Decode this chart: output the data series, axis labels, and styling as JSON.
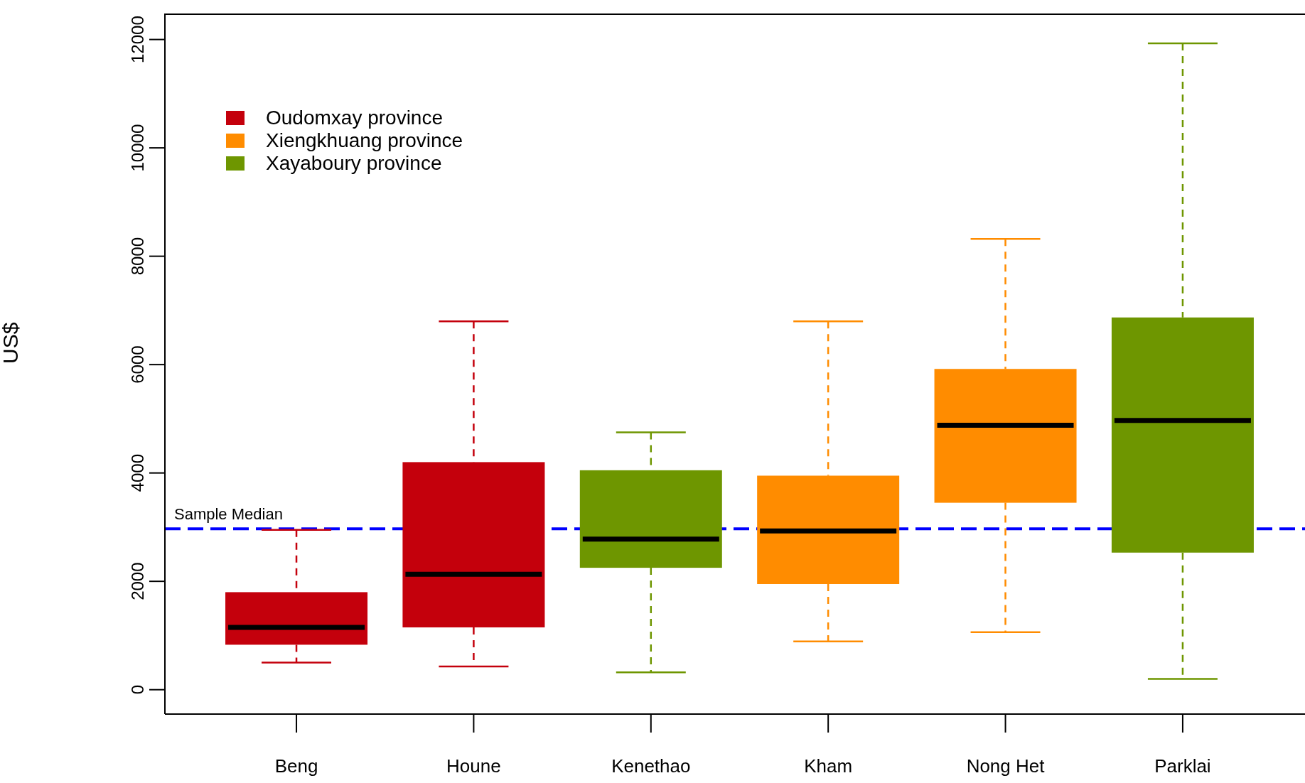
{
  "chart_data": {
    "type": "box",
    "ylabel": "US$",
    "categories": [
      "Beng",
      "Houne",
      "Kenethao",
      "Kham",
      "Nong Het",
      "Parklai"
    ],
    "series": [
      {
        "name": "Oudomxay province",
        "color": "#c4000c",
        "boxes": [
          {
            "low": 500,
            "q1": 830,
            "median": 1150,
            "q3": 1800,
            "high": 2950
          },
          {
            "low": 430,
            "q1": 1150,
            "median": 2130,
            "q3": 4200,
            "high": 6800
          },
          null,
          null,
          null,
          null
        ]
      },
      {
        "name": "Xiengkhuang province",
        "color": "#ff8c00",
        "boxes": [
          null,
          null,
          null,
          {
            "low": 890,
            "q1": 1950,
            "median": 2930,
            "q3": 3950,
            "high": 6800
          },
          {
            "low": 1060,
            "q1": 3450,
            "median": 4880,
            "q3": 5920,
            "high": 8320
          },
          null
        ]
      },
      {
        "name": "Xayaboury province",
        "color": "#6e9600",
        "boxes": [
          null,
          null,
          {
            "low": 320,
            "q1": 2250,
            "median": 2780,
            "q3": 4050,
            "high": 4750
          },
          null,
          null,
          {
            "low": 200,
            "q1": 2530,
            "median": 4970,
            "q3": 6870,
            "high": 11930
          }
        ]
      }
    ],
    "ylim": [
      -450,
      12480
    ],
    "yticks": [
      0,
      2000,
      4000,
      6000,
      8000,
      10000,
      12000
    ],
    "ref_lines": [
      {
        "axis": "y",
        "value": 2970,
        "label": "Sample Median",
        "color": "#0000ff",
        "line_style": "dashed"
      }
    ],
    "legend": "top left"
  }
}
